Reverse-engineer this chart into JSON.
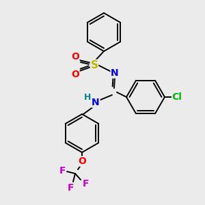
{
  "background_color": "#ebebeb",
  "bond_color": "#000000",
  "atom_colors": {
    "S": "#b8b800",
    "O": "#ff0000",
    "N_imine": "#0000ee",
    "N_amine": "#0000ee",
    "H": "#008888",
    "Cl": "#00bb00",
    "O_ether": "#ff0000",
    "F": "#cc00cc"
  },
  "figsize": [
    3.0,
    3.0
  ],
  "dpi": 100
}
